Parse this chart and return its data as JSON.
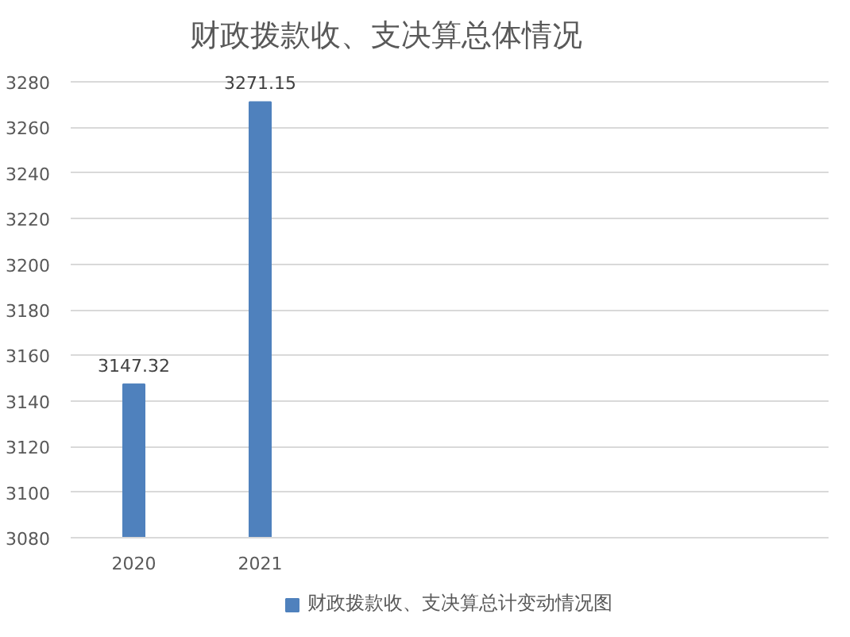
{
  "chart_data": {
    "type": "bar",
    "title": "财政拨款收、支决算总体情况",
    "categories": [
      "2020",
      "2021",
      null,
      null,
      null,
      null
    ],
    "series": [
      {
        "name": "财政拨款收、支决算总计变动情况图",
        "color": "#4f81bd",
        "values": [
          3147.32,
          3271.15,
          null,
          null,
          null,
          null
        ]
      }
    ],
    "ylim": [
      3080,
      3280
    ],
    "yticks": [
      3080,
      3100,
      3120,
      3140,
      3160,
      3180,
      3200,
      3220,
      3240,
      3260,
      3280
    ],
    "grid": "y",
    "legend": "bottom",
    "data_labels": true
  }
}
